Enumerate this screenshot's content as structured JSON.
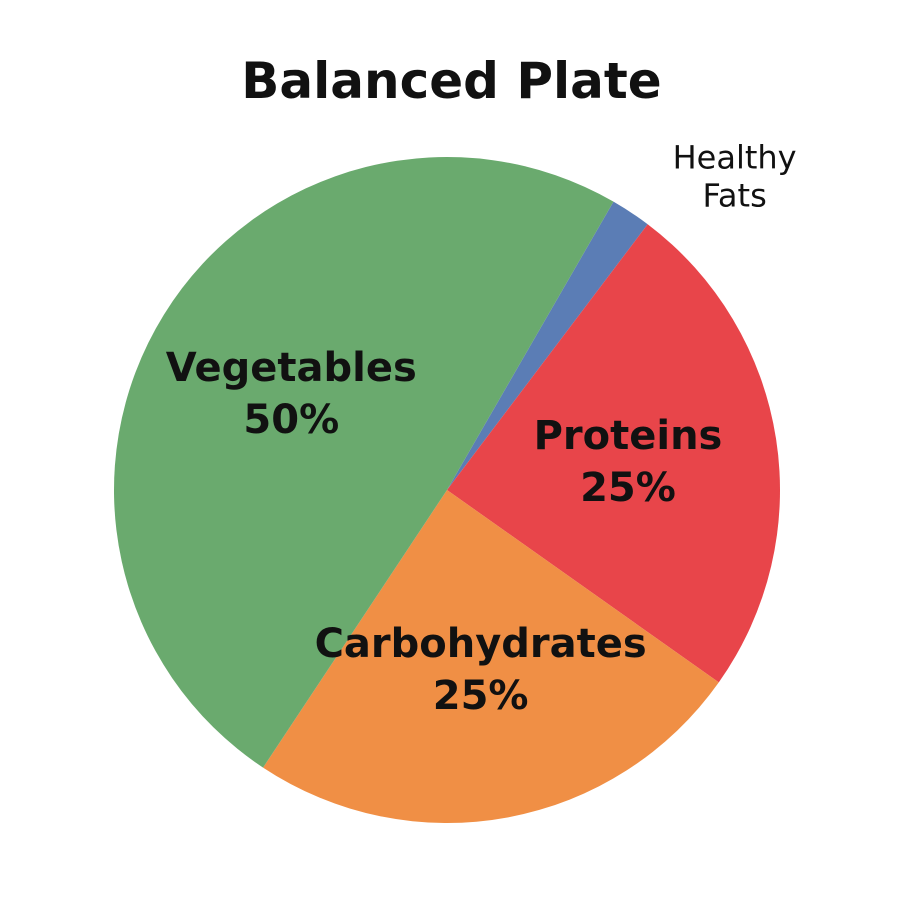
{
  "chart_data": {
    "type": "pie",
    "title": "Balanced Plate",
    "categories": [
      "Healthy Fats",
      "Proteins",
      "Carbohydrates",
      "Vegetables"
    ],
    "values": [
      2,
      25,
      25,
      50
    ],
    "value_labels": [
      null,
      "25%",
      "25%",
      "50%"
    ],
    "colors": [
      "#5b7db5",
      "#e8454a",
      "#f08f45",
      "#6aaa6e"
    ]
  }
}
